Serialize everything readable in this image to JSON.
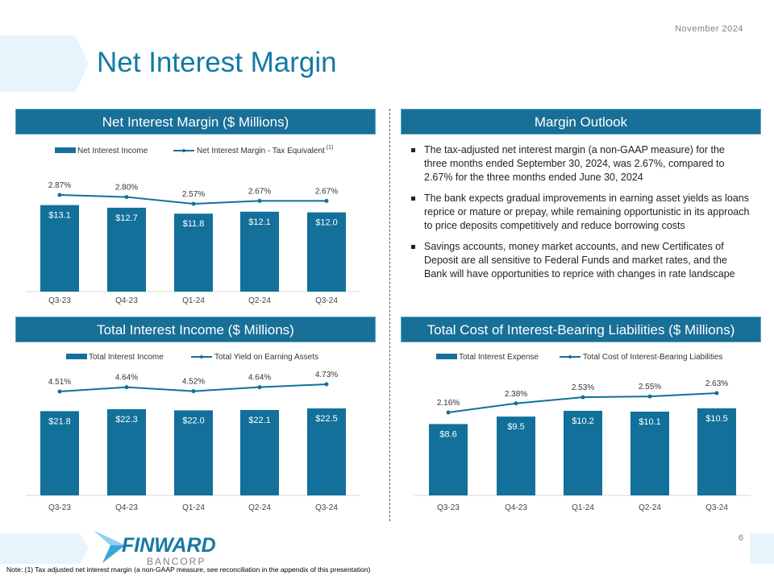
{
  "header": {
    "date": "November 2024",
    "title": "Net Interest Margin"
  },
  "panels": {
    "nim": "Net Interest Margin ($ Millions)",
    "outlook": "Margin Outlook",
    "tii": "Total Interest Income ($ Millions)",
    "cost": "Total Cost of Interest-Bearing Liabilities ($ Millions)"
  },
  "outlook": {
    "bullets": [
      "The tax-adjusted net interest margin (a non-GAAP measure) for the three months ended September 30, 2024, was 2.67%, compared to 2.67% for the three months ended June 30, 2024",
      "The bank expects gradual improvements in earning asset yields as loans reprice or mature or prepay, while remaining opportunistic in its approach to price deposits competitively and reduce borrowing costs",
      "Savings accounts, money market accounts, and new Certificates of Deposit are all sensitive to Federal Funds and market rates, and the Bank will have opportunities to reprice with changes in rate landscape"
    ]
  },
  "chart_data": [
    {
      "type": "bar+line",
      "categories": [
        "Q3-23",
        "Q4-23",
        "Q1-24",
        "Q2-24",
        "Q3-24"
      ],
      "series": [
        {
          "name": "Net Interest Income",
          "kind": "bar",
          "values": [
            13.1,
            12.7,
            11.8,
            12.1,
            12.0
          ],
          "labels": [
            "$13.1",
            "$12.7",
            "$11.8",
            "$12.1",
            "$12.0"
          ]
        },
        {
          "name": "Net Interest Margin - Tax Equivalent",
          "superscript": "(1)",
          "kind": "line",
          "values": [
            2.87,
            2.8,
            2.57,
            2.67,
            2.67
          ],
          "labels": [
            "2.87%",
            "2.80%",
            "2.57%",
            "2.67%",
            "2.67%"
          ]
        }
      ],
      "legend": "top",
      "color": "#12709a"
    },
    {
      "type": "bar+line",
      "categories": [
        "Q3-23",
        "Q4-23",
        "Q1-24",
        "Q2-24",
        "Q3-24"
      ],
      "series": [
        {
          "name": "Total Interest Income",
          "kind": "bar",
          "values": [
            21.8,
            22.3,
            22.0,
            22.1,
            22.5
          ],
          "labels": [
            "$21.8",
            "$22.3",
            "$22.0",
            "$22.1",
            "$22.5"
          ]
        },
        {
          "name": "Total Yield on Earning Assets",
          "kind": "line",
          "values": [
            4.51,
            4.64,
            4.52,
            4.64,
            4.73
          ],
          "labels": [
            "4.51%",
            "4.64%",
            "4.52%",
            "4.64%",
            "4.73%"
          ]
        }
      ],
      "legend": "top",
      "color": "#12709a"
    },
    {
      "type": "bar+line",
      "categories": [
        "Q3-23",
        "Q4-23",
        "Q1-24",
        "Q2-24",
        "Q3-24"
      ],
      "series": [
        {
          "name": "Total Interest Expense",
          "kind": "bar",
          "values": [
            8.6,
            9.5,
            10.2,
            10.1,
            10.5
          ],
          "labels": [
            "$8.6",
            "$9.5",
            "$10.2",
            "$10.1",
            "$10.5"
          ]
        },
        {
          "name": "Total Cost of Interest-Bearing Liabilities",
          "kind": "line",
          "values": [
            2.16,
            2.38,
            2.53,
            2.55,
            2.63
          ],
          "labels": [
            "2.16%",
            "2.38%",
            "2.53%",
            "2.55%",
            "2.63%"
          ]
        }
      ],
      "legend": "top",
      "color": "#12709a"
    }
  ],
  "footer": {
    "logo_text": "FINWARD",
    "logo_sub": "BANCORP",
    "page": "6",
    "note": "Note:  (1) Tax adjusted net interest margin (a non-GAAP measure, see reconciliation in the appendix of this presentation)"
  }
}
